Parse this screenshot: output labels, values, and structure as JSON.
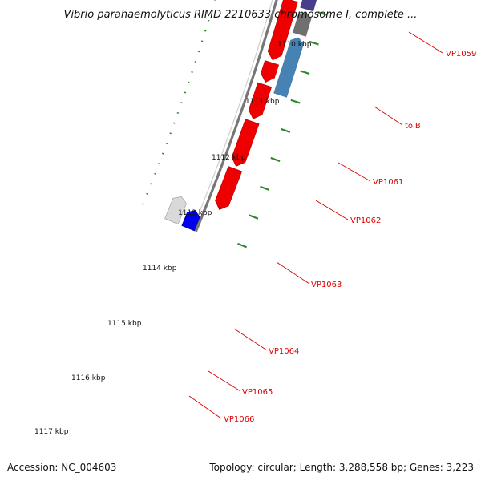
{
  "title": "Vibrio parahaemolyticus RIMD 2210633 chromosome I, complete ...",
  "footer": {
    "accession": "Accession: NC_004603",
    "topology": "Topology: circular; Length: 3,288,558 bp; Genes: 3,223"
  },
  "colors": {
    "backbone": "#777777",
    "scale_tick": "#2f8a2f",
    "cds_forward": "#ee0000",
    "label_line": "#dd0000",
    "reverse_gene_colors": [
      "#6b8e23",
      "#adff2f",
      "#6b8e23",
      "#707070",
      "#0000ee",
      "#483d8b",
      "#707070",
      "#4682b4"
    ]
  },
  "scale": {
    "unit": "kbp",
    "ticks": [
      {
        "kbp": 1110,
        "label": "1110 kbp"
      },
      {
        "kbp": 1111,
        "label": "1111 kbp"
      },
      {
        "kbp": 1112,
        "label": "1112 kbp"
      },
      {
        "kbp": 1113,
        "label": "1113 kbp"
      },
      {
        "kbp": 1114,
        "label": "1114 kbp"
      },
      {
        "kbp": 1115,
        "label": "1115 kbp"
      },
      {
        "kbp": 1116,
        "label": "1116 kbp"
      },
      {
        "kbp": 1117,
        "label": "1117 kbp"
      }
    ]
  },
  "genes": [
    {
      "name": "VP1059",
      "strand": "reverse",
      "color": "olive"
    },
    {
      "name": "tolB",
      "strand": "reverse",
      "color": "green-yellow"
    },
    {
      "name": "VP1061",
      "strand": "reverse",
      "color": "olive"
    },
    {
      "name": "VP1062",
      "strand": "reverse",
      "color": "gray"
    },
    {
      "name": "VP1063",
      "strand": "reverse",
      "color": "blue"
    },
    {
      "name": "VP1064",
      "strand": "reverse",
      "color": "dark-slate-blue"
    },
    {
      "name": "VP1065",
      "strand": "reverse",
      "color": "gray"
    },
    {
      "name": "VP1066",
      "strand": "reverse",
      "color": "steel-blue"
    }
  ]
}
